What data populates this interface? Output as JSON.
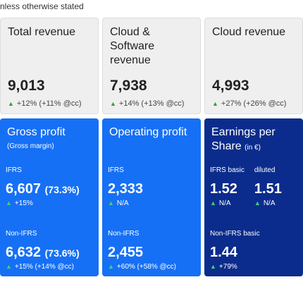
{
  "header": {
    "note": "nless otherwise stated"
  },
  "top_cards": [
    {
      "title": "Total revenue",
      "value": "9,013",
      "change": "+12% (+11% @cc)"
    },
    {
      "title": "Cloud & Software revenue",
      "value": "7,938",
      "change": "+14% (+13% @cc)"
    },
    {
      "title": "Cloud revenue",
      "value": "4,993",
      "change": "+27% (+26% @cc)"
    }
  ],
  "bottom_cards": [
    {
      "title": "Gross profit",
      "subtitle": "(Gross margin)",
      "rows": [
        {
          "items": [
            {
              "label": "IFRS",
              "value": "6,607",
              "extra": "(73.3%)",
              "change": "+15%"
            }
          ]
        },
        {
          "items": [
            {
              "label": "Non-IFRS",
              "value": "6,632",
              "extra": "(73.6%)",
              "change": "+15% (+14% @cc)"
            }
          ]
        }
      ]
    },
    {
      "title": "Operating profit",
      "rows": [
        {
          "items": [
            {
              "label": "IFRS",
              "value": "2,333",
              "change": "N/A"
            }
          ]
        },
        {
          "items": [
            {
              "label": "Non-IFRS",
              "value": "2,455",
              "change": "+60% (+58% @cc)"
            }
          ]
        }
      ]
    },
    {
      "title": "Earnings per Share",
      "unit": "(in €)",
      "rows": [
        {
          "items": [
            {
              "label": "IFRS basic",
              "value": "1.52",
              "change": "N/A"
            },
            {
              "label": "diluted",
              "value": "1.51",
              "change": "N/A"
            }
          ]
        },
        {
          "items": [
            {
              "label": "Non-IFRS basic",
              "value": "1.44",
              "change": "+79%"
            }
          ]
        }
      ]
    }
  ]
}
